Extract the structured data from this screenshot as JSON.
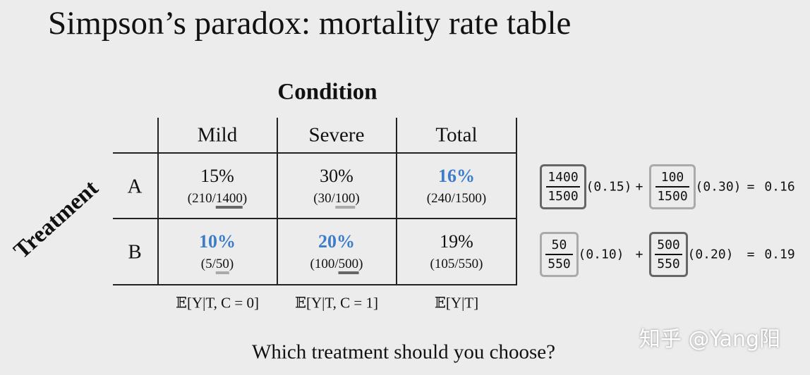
{
  "title": "Simpson’s paradox: mortality rate table",
  "column_group": "Condition",
  "row_group": "Treatment",
  "table": {
    "columns": [
      "Mild",
      "Severe",
      "Total"
    ],
    "rows": [
      {
        "label": "A",
        "cells": [
          {
            "rate": "15%",
            "fraction": [
              "(210/",
              "1400",
              ")"
            ],
            "underline": "dark",
            "emphasis": false
          },
          {
            "rate": "30%",
            "fraction": [
              "(30/",
              "100",
              ")"
            ],
            "underline": "light",
            "emphasis": false
          },
          {
            "rate": "16%",
            "fraction": [
              "(240/1500)"
            ],
            "emphasis": true
          }
        ]
      },
      {
        "label": "B",
        "cells": [
          {
            "rate": "10%",
            "fraction": [
              "(5/",
              "50",
              ")"
            ],
            "underline": "light",
            "emphasis": true
          },
          {
            "rate": "20%",
            "fraction": [
              "(100/",
              "500",
              ")"
            ],
            "underline": "dark",
            "emphasis": true
          },
          {
            "rate": "19%",
            "fraction": [
              "(105/550)"
            ],
            "emphasis": false
          }
        ]
      }
    ],
    "footer": [
      "𝔼[Y|T, C = 0]",
      "𝔼[Y|T, C = 1]",
      "𝔼[Y|T]"
    ]
  },
  "equations": [
    {
      "terms": [
        {
          "numerator": "1400",
          "denominator": "1500",
          "box": "dark",
          "factor": "(0.15)"
        },
        {
          "numerator": "100",
          "denominator": "1500",
          "box": "light",
          "factor": "(0.30)"
        }
      ],
      "plus": "+",
      "equals": "=",
      "result": "0.16"
    },
    {
      "terms": [
        {
          "numerator": "50",
          "denominator": "550",
          "box": "light",
          "factor": "(0.10)"
        },
        {
          "numerator": "500",
          "denominator": "550",
          "box": "dark",
          "factor": "(0.20)"
        }
      ],
      "plus": "+",
      "equals": "=",
      "result": "0.19"
    }
  ],
  "question": "Which treatment should you choose?",
  "watermark": "知乎 @Yang阳"
}
